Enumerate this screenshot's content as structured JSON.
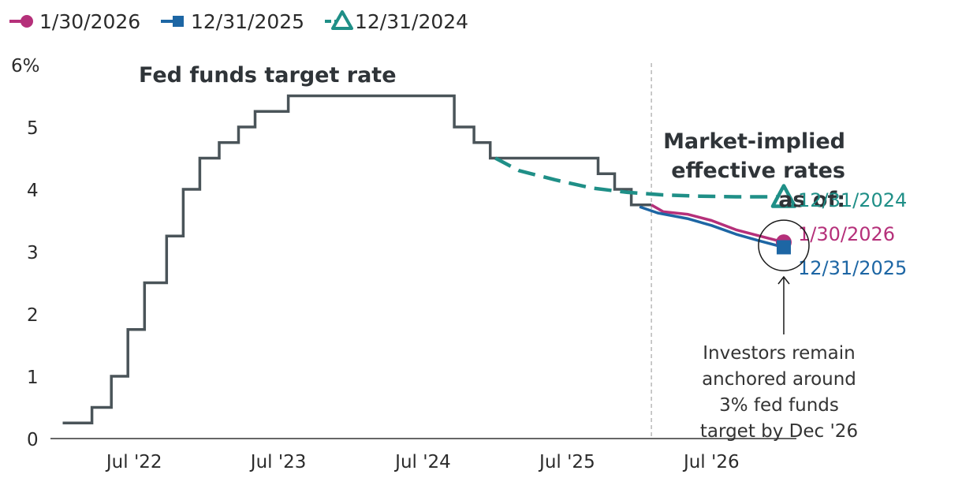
{
  "chart_data": {
    "type": "line",
    "legend": [
      {
        "key": "s2026",
        "label": "1/30/2026",
        "color": "#b5307a",
        "marker": "circle"
      },
      {
        "key": "s2025",
        "label": "12/31/2025",
        "color": "#1d66a4",
        "marker": "square"
      },
      {
        "key": "s2024",
        "label": "12/31/2024",
        "color": "#1f8f87",
        "marker": "triangle"
      }
    ],
    "legend_position": "top-left",
    "y_unit_label": "6%",
    "y_ticks": [
      0,
      1,
      2,
      3,
      4,
      5
    ],
    "ylim": [
      0,
      6
    ],
    "x_ticks": [
      "2022-07-01",
      "2023-07-01",
      "2024-07-01",
      "2025-07-01",
      "2026-07-01"
    ],
    "x_tick_labels": [
      "Jul '22",
      "Jul '23",
      "Jul '24",
      "Jul '25",
      "Jul '26"
    ],
    "xlim": [
      "2021-12-01",
      "2027-02-01"
    ],
    "divider_date": "2026-01-30",
    "fed_funds_label": "Fed funds target rate",
    "fed_funds_color": "#4a5459",
    "fed_funds": [
      [
        "2022-01-01",
        0.25
      ],
      [
        "2022-03-16",
        0.5
      ],
      [
        "2022-05-04",
        1.0
      ],
      [
        "2022-06-15",
        1.75
      ],
      [
        "2022-07-27",
        2.5
      ],
      [
        "2022-09-21",
        3.25
      ],
      [
        "2022-11-02",
        4.0
      ],
      [
        "2022-12-14",
        4.5
      ],
      [
        "2023-02-01",
        4.75
      ],
      [
        "2023-03-22",
        5.0
      ],
      [
        "2023-05-03",
        5.25
      ],
      [
        "2023-07-26",
        5.5
      ],
      [
        "2024-09-18",
        5.0
      ],
      [
        "2024-11-07",
        4.75
      ],
      [
        "2024-12-18",
        4.5
      ],
      [
        "2025-09-17",
        4.25
      ],
      [
        "2025-10-29",
        4.0
      ],
      [
        "2025-12-10",
        3.75
      ],
      [
        "2026-01-30",
        3.75
      ]
    ],
    "market_anno": [
      "Market-implied",
      "effective rates",
      "as of:"
    ],
    "series": [
      {
        "key": "s2024",
        "name": "12/31/2024",
        "dashed": true,
        "points": [
          [
            "2024-12-31",
            4.5
          ],
          [
            "2025-03-01",
            4.3
          ],
          [
            "2025-06-01",
            4.15
          ],
          [
            "2025-09-01",
            4.02
          ],
          [
            "2025-12-01",
            3.95
          ],
          [
            "2026-03-01",
            3.91
          ],
          [
            "2026-06-01",
            3.89
          ],
          [
            "2026-09-01",
            3.88
          ],
          [
            "2026-12-31",
            3.88
          ]
        ]
      },
      {
        "key": "s2026",
        "name": "1/30/2026",
        "dashed": false,
        "points": [
          [
            "2026-01-30",
            3.75
          ],
          [
            "2026-03-01",
            3.64
          ],
          [
            "2026-05-01",
            3.6
          ],
          [
            "2026-07-01",
            3.5
          ],
          [
            "2026-09-01",
            3.35
          ],
          [
            "2026-11-01",
            3.25
          ],
          [
            "2026-12-31",
            3.15
          ]
        ]
      },
      {
        "key": "s2025",
        "name": "12/31/2025",
        "dashed": false,
        "points": [
          [
            "2025-12-31",
            3.72
          ],
          [
            "2026-02-15",
            3.62
          ],
          [
            "2026-05-01",
            3.53
          ],
          [
            "2026-07-01",
            3.42
          ],
          [
            "2026-09-01",
            3.28
          ],
          [
            "2026-11-01",
            3.17
          ],
          [
            "2026-12-31",
            3.07
          ]
        ]
      }
    ],
    "end_labels": [
      {
        "key": "s2024",
        "text": "12/31/2024"
      },
      {
        "key": "s2026",
        "text": "1/30/2026"
      },
      {
        "key": "s2025",
        "text": "12/31/2025"
      }
    ],
    "note_lines": [
      "Investors remain",
      "anchored around",
      "3% fed funds",
      "target by Dec '26"
    ]
  }
}
